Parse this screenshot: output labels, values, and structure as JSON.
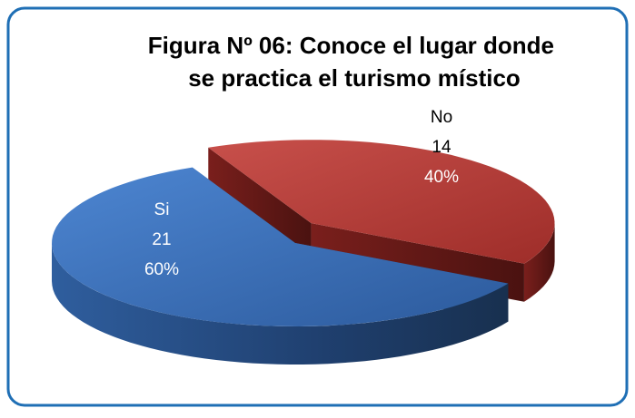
{
  "chart_data": {
    "type": "pie3d",
    "title": "Figura Nº 06: Conoce el lugar donde se practica el turismo místico",
    "categories": [
      "Si",
      "No"
    ],
    "values": [
      21,
      14
    ],
    "percents": [
      60,
      40
    ],
    "percent_labels": [
      "60%",
      "40%"
    ],
    "colors": [
      "#3a6fb8",
      "#b83a36"
    ]
  }
}
